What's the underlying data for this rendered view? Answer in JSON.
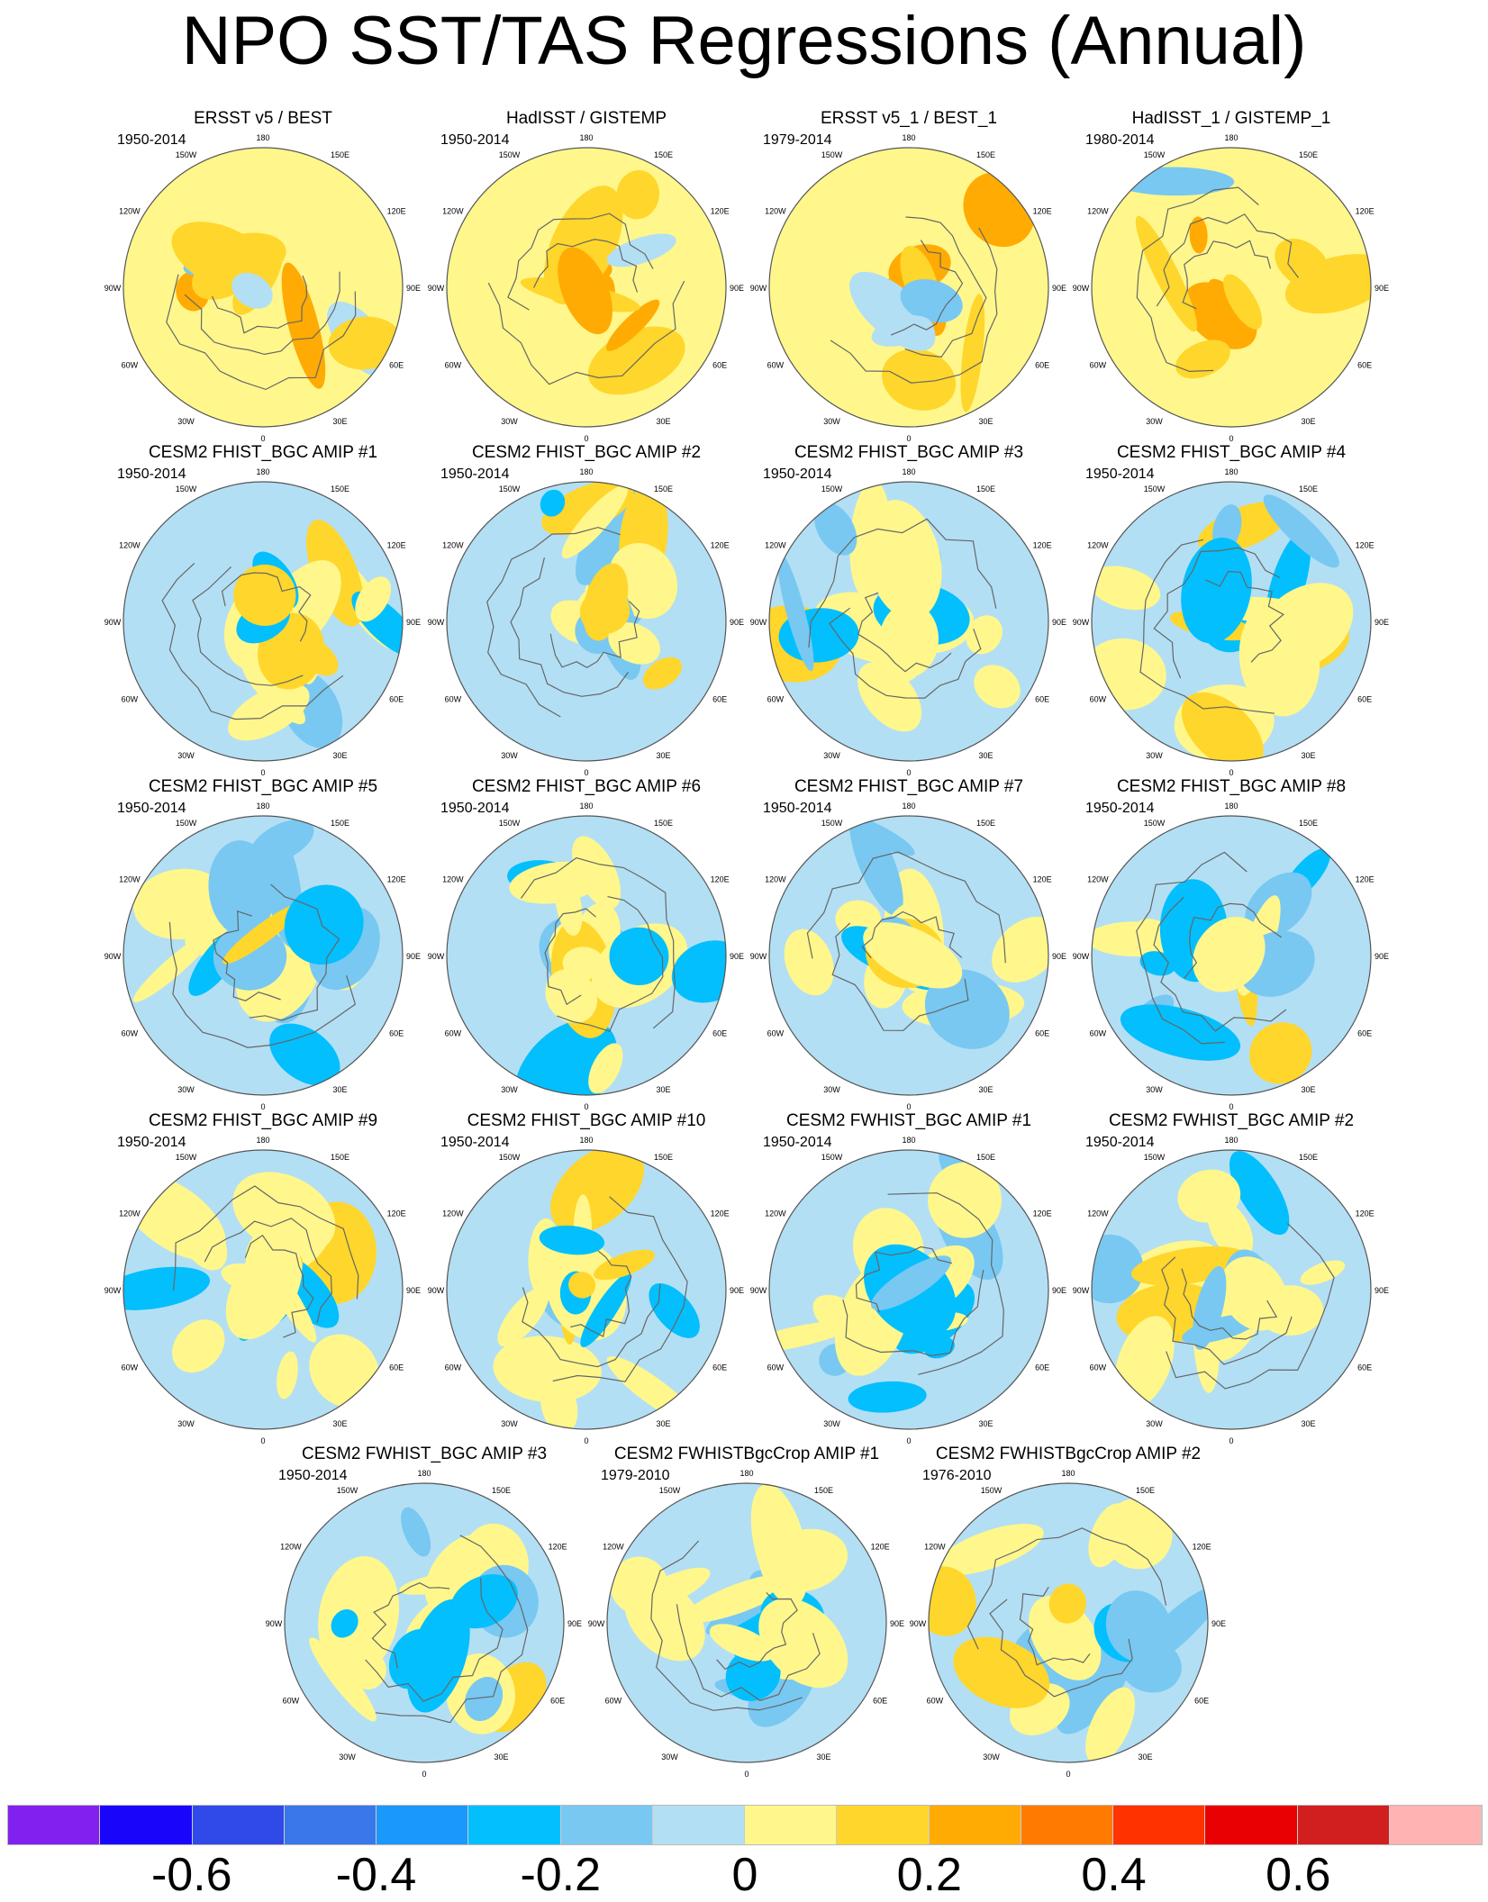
{
  "title": "NPO SST/TAS Regressions (Annual)",
  "lon_labels": [
    "180",
    "150E",
    "120E",
    "90E",
    "60E",
    "30E",
    "0",
    "30W",
    "60W",
    "90W",
    "120W",
    "150W"
  ],
  "panels": [
    {
      "title": "ERSST v5 / BEST",
      "period": "1950-2014",
      "tone": "warm"
    },
    {
      "title": "HadISST / GISTEMP",
      "period": "1950-2014",
      "tone": "warm"
    },
    {
      "title": "ERSST v5_1 / BEST_1",
      "period": "1979-2014",
      "tone": "warm"
    },
    {
      "title": "HadISST_1 / GISTEMP_1",
      "period": "1980-2014",
      "tone": "warm"
    },
    {
      "title": "CESM2 FHIST_BGC AMIP #1",
      "period": "1950-2014",
      "tone": "mixed"
    },
    {
      "title": "CESM2 FHIST_BGC AMIP #2",
      "period": "1950-2014",
      "tone": "mixed"
    },
    {
      "title": "CESM2 FHIST_BGC AMIP #3",
      "period": "1950-2014",
      "tone": "mixed"
    },
    {
      "title": "CESM2 FHIST_BGC AMIP #4",
      "period": "1950-2014",
      "tone": "mixed"
    },
    {
      "title": "CESM2 FHIST_BGC AMIP #5",
      "period": "1950-2014",
      "tone": "mixed"
    },
    {
      "title": "CESM2 FHIST_BGC AMIP #6",
      "period": "1950-2014",
      "tone": "mixed"
    },
    {
      "title": "CESM2 FHIST_BGC AMIP #7",
      "period": "1950-2014",
      "tone": "mixed"
    },
    {
      "title": "CESM2 FHIST_BGC AMIP #8",
      "period": "1950-2014",
      "tone": "mixed"
    },
    {
      "title": "CESM2 FHIST_BGC AMIP #9",
      "period": "1950-2014",
      "tone": "mixed"
    },
    {
      "title": "CESM2 FHIST_BGC AMIP #10",
      "period": "1950-2014",
      "tone": "mixed"
    },
    {
      "title": "CESM2 FWHIST_BGC AMIP #1",
      "period": "1950-2014",
      "tone": "mixed"
    },
    {
      "title": "CESM2 FWHIST_BGC AMIP #2",
      "period": "1950-2014",
      "tone": "mixed"
    },
    {
      "title": "CESM2 FWHIST_BGC AMIP #3",
      "period": "1950-2014",
      "tone": "mixed"
    },
    {
      "title": "CESM2 FWHISTBgcCrop AMIP #1",
      "period": "1979-2010",
      "tone": "mixed"
    },
    {
      "title": "CESM2 FWHISTBgcCrop AMIP #2",
      "period": "1976-2010",
      "tone": "mixed"
    }
  ],
  "colorbar": {
    "colors": [
      "#8121ef",
      "#1a05fb",
      "#2f4ae9",
      "#3878ea",
      "#1a98fc",
      "#03bffd",
      "#78c8f2",
      "#b3dff4",
      "#fff78c",
      "#ffd62b",
      "#ffab04",
      "#ff7a00",
      "#ff3200",
      "#e80002",
      "#d11e1f",
      "#ffb3b3"
    ],
    "labels": [
      "-0.6",
      "-0.4",
      "-0.2",
      "0",
      "0.2",
      "0.4",
      "0.6"
    ],
    "label_values": [
      -0.6,
      -0.4,
      -0.2,
      0,
      0.2,
      0.4,
      0.6
    ],
    "range": [
      -0.8,
      0.8
    ]
  }
}
